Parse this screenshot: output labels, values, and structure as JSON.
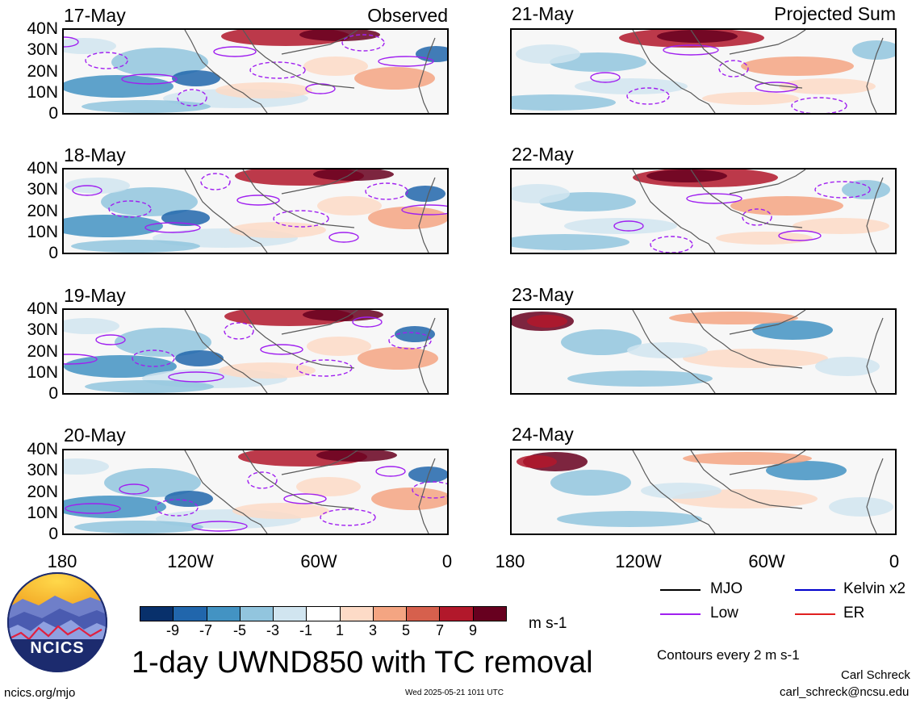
{
  "header": {
    "left_label": "Observed",
    "right_label": "Projected Sum"
  },
  "panels": {
    "left": [
      "17-May",
      "18-May",
      "19-May",
      "20-May"
    ],
    "right": [
      "21-May",
      "22-May",
      "23-May",
      "24-May"
    ]
  },
  "axes": {
    "y_ticks": [
      "40N",
      "30N",
      "20N",
      "10N",
      "0"
    ],
    "x_ticks": [
      "180",
      "120W",
      "60W",
      "0"
    ]
  },
  "legend": {
    "mjo": "MJO",
    "low": "Low",
    "kelvin": "Kelvin x2",
    "er": "ER",
    "colors": {
      "mjo": "#000000",
      "low": "#a020f0",
      "kelvin": "#0000cc",
      "er": "#e02020"
    }
  },
  "colorbar": {
    "labels": [
      "-9",
      "-7",
      "-5",
      "-3",
      "-1",
      "1",
      "3",
      "5",
      "7",
      "9"
    ],
    "units": "m s-1",
    "colors": [
      "#08306b",
      "#2166ac",
      "#4393c3",
      "#92c5de",
      "#d1e5f0",
      "#ffffff",
      "#fddbc7",
      "#f4a582",
      "#d6604d",
      "#b2182b",
      "#67001f"
    ]
  },
  "title": "1-day UWND850 with TC removal",
  "contours_note": "Contours every 2 m s-1",
  "logo": {
    "text": "NCICS"
  },
  "footer": {
    "left": "ncics.org/mjo",
    "center": "Wed 2025-05-21 1011 UTC",
    "author": "Carl Schreck",
    "email": "carl_schreck@ncsu.edu"
  }
}
